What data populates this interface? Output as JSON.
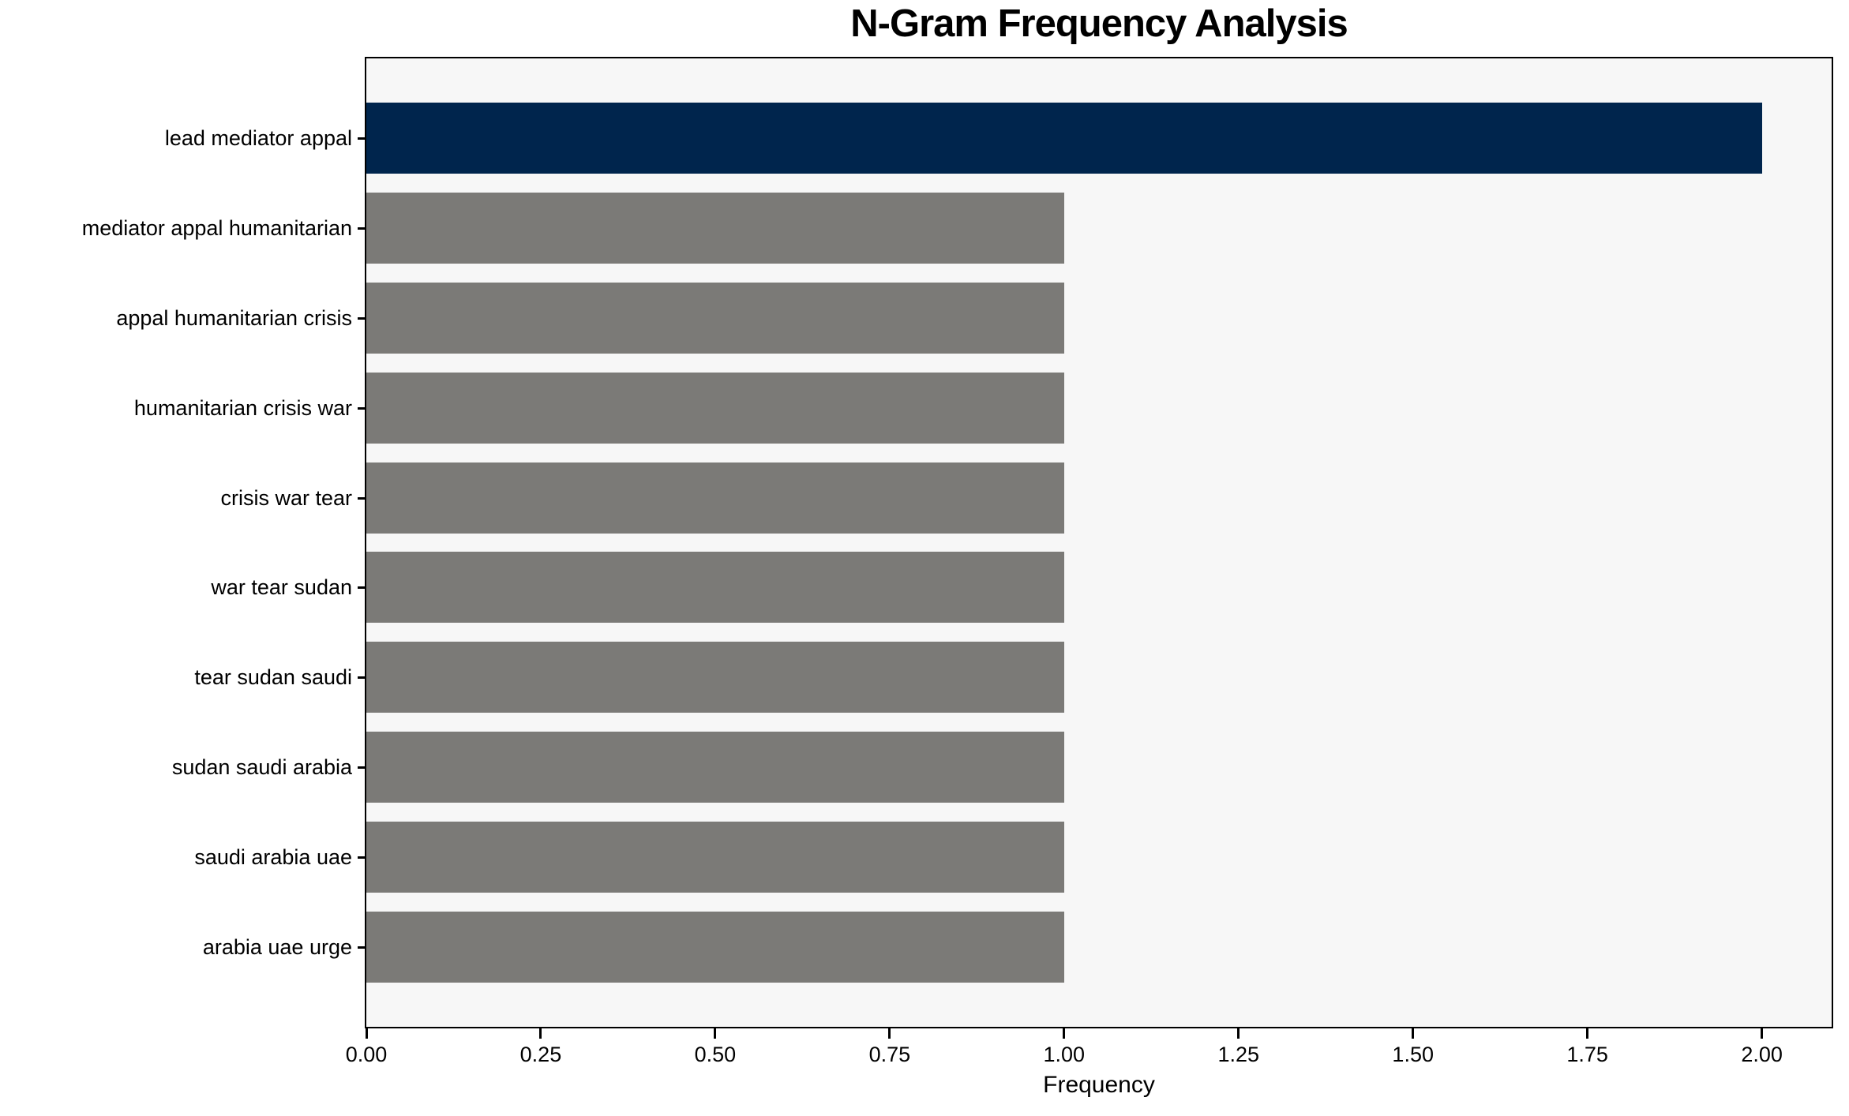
{
  "figure": {
    "title": "N-Gram Frequency Analysis",
    "xlabel": "Frequency"
  },
  "chart_data": {
    "type": "bar",
    "orientation": "horizontal",
    "title": "N-Gram Frequency Analysis",
    "xlabel": "Frequency",
    "ylabel": "",
    "categories": [
      "lead mediator appal",
      "mediator appal humanitarian",
      "appal humanitarian crisis",
      "humanitarian crisis war",
      "crisis war tear",
      "war tear sudan",
      "tear sudan saudi",
      "sudan saudi arabia",
      "saudi arabia uae",
      "arabia uae urge"
    ],
    "values": [
      2,
      1,
      1,
      1,
      1,
      1,
      1,
      1,
      1,
      1
    ],
    "highlight_index": 0,
    "xlim": [
      0,
      2.1
    ],
    "xticks": [
      0,
      0.25,
      0.5,
      0.75,
      1.0,
      1.25,
      1.5,
      1.75,
      2.0
    ],
    "xtick_labels": [
      "0.00",
      "0.25",
      "0.50",
      "0.75",
      "1.00",
      "1.25",
      "1.50",
      "1.75",
      "2.00"
    ],
    "grid": false,
    "legend": false,
    "colors": {
      "bar_highlight": "#00254D",
      "bar_default": "#7B7A77",
      "plot_background": "#F7F7F7",
      "figure_background": "#FFFFFF",
      "axis": "#000000",
      "text": "#000000"
    }
  }
}
